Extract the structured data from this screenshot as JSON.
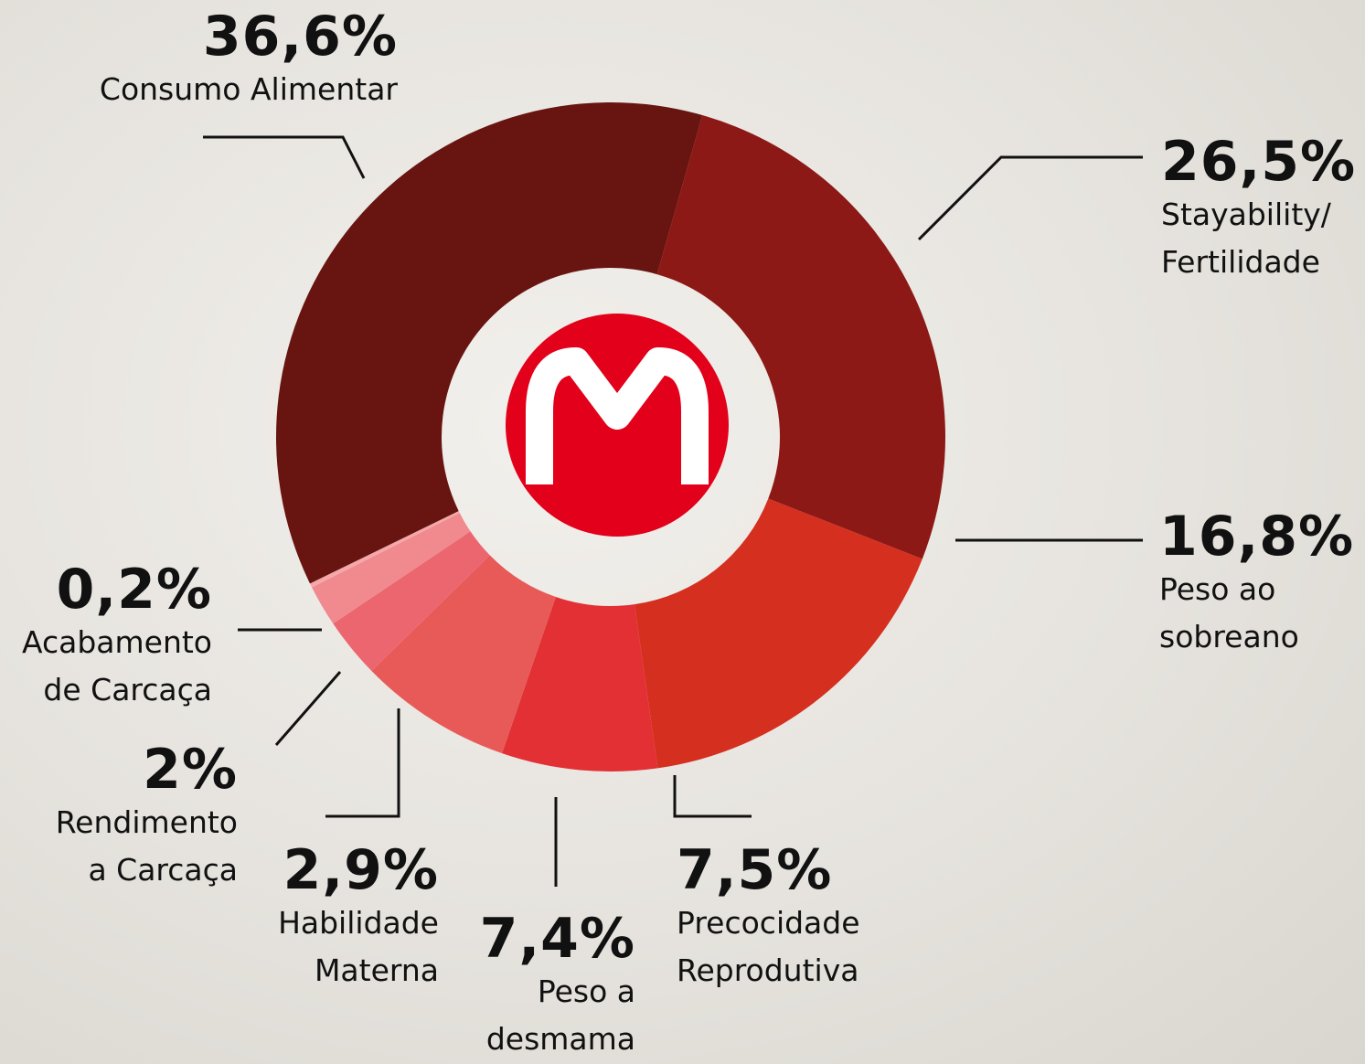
{
  "chart_data": {
    "type": "donut",
    "categories": [
      "Consumo Alimentar",
      "Stayability/\nFertilidade",
      "Peso ao\nsobreano",
      "Precocidade\nReprodutiva",
      "Peso a\ndesmama",
      "Habilidade\nMaterna",
      "Rendimento\na Carcaça",
      "Acabamento\nde Carcaça"
    ],
    "values": [
      36.6,
      26.5,
      16.8,
      7.5,
      7.4,
      2.9,
      2,
      0.2
    ],
    "value_labels": [
      "36,6%",
      "26,5%",
      "16,8%",
      "7,5%",
      "7,4%",
      "2,9%",
      "2%",
      "0,2%"
    ],
    "colors": [
      "#681410",
      "#8c1915",
      "#d52f20",
      "#e23034",
      "#e85a58",
      "#ec6670",
      "#f08a8e",
      "#f4a8aa"
    ]
  }
}
